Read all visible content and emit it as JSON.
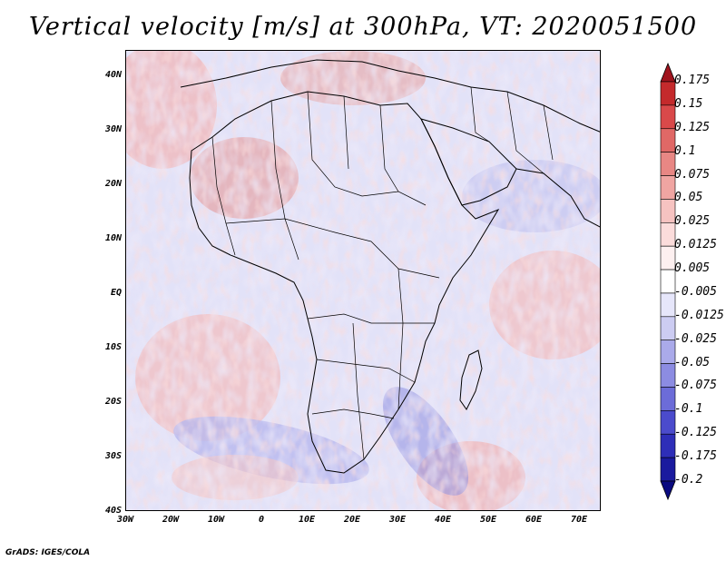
{
  "title": "Vertical velocity [m/s] at 300hPa, VT: 2020051500",
  "credit": "GrADS: IGES/COLA",
  "map": {
    "lat_labels": [
      "40N",
      "30N",
      "20N",
      "10N",
      "EQ",
      "10S",
      "20S",
      "30S",
      "40S"
    ],
    "lon_labels": [
      "30W",
      "20W",
      "10W",
      "0",
      "10E",
      "20E",
      "30E",
      "40E",
      "50E",
      "60E",
      "70E"
    ],
    "lat_range": [
      -40,
      45
    ],
    "lon_range": [
      -30,
      75
    ]
  },
  "colorbar": {
    "levels": [
      "0.175",
      "0.15",
      "0.125",
      "0.1",
      "0.075",
      "0.05",
      "0.025",
      "0.0125",
      "0.005",
      "-0.005",
      "-0.0125",
      "-0.025",
      "-0.05",
      "-0.075",
      "-0.1",
      "-0.125",
      "-0.175",
      "-0.2"
    ],
    "colors": [
      "#a0141e",
      "#c42a2c",
      "#d9494a",
      "#e06866",
      "#e88784",
      "#f0a5a2",
      "#f6c3c1",
      "#fbdcdb",
      "#fdf0f0",
      "#ffffff",
      "#e6e6fa",
      "#ccccf2",
      "#aaaaea",
      "#8c8ce2",
      "#6c6cd8",
      "#4b4bcc",
      "#2e2eb8",
      "#1a1a9e",
      "#0a0a80"
    ]
  }
}
